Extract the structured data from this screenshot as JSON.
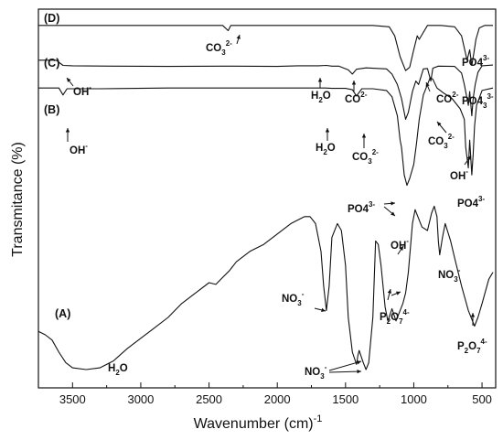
{
  "chart_data": {
    "type": "line",
    "xlabel": "Wavenumber (cm)",
    "xlabel_sup": "-1",
    "ylabel": "Transmitance (%)",
    "xlim": [
      3750,
      400
    ],
    "x_ticks": [
      3500,
      3000,
      2500,
      2000,
      1500,
      1000,
      500
    ],
    "y_ticks_labeled": false,
    "grid": false,
    "legend": "none",
    "series": [
      {
        "name": "(D)",
        "x": [
          3750,
          3000,
          2400,
          2360,
          2340,
          2000,
          1300,
          1180,
          1140,
          1100,
          1060,
          1030,
          1000,
          975,
          960,
          900,
          800,
          700,
          650,
          610,
          590,
          575,
          560,
          545,
          520,
          480,
          420
        ],
        "y": [
          99,
          99,
          99,
          97.5,
          99,
          99,
          99,
          98.6,
          96,
          90,
          86,
          87,
          92,
          96,
          95,
          99,
          99,
          98.6,
          96,
          89,
          92,
          87.5,
          91,
          95,
          98.3,
          99,
          99
        ]
      },
      {
        "name": "(C)",
        "x": [
          3750,
          3620,
          3570,
          3500,
          3200,
          2800,
          2400,
          2000,
          1850,
          1700,
          1640,
          1600,
          1550,
          1480,
          1450,
          1420,
          1350,
          1200,
          1160,
          1120,
          1090,
          1060,
          1040,
          1010,
          985,
          965,
          930,
          900,
          875,
          860,
          820,
          700,
          650,
          630,
          600,
          590,
          575,
          565,
          550,
          530,
          500,
          420
        ],
        "y": [
          89,
          89,
          87.5,
          87.4,
          87.3,
          87.2,
          87.3,
          87.2,
          87.4,
          87.4,
          87.5,
          87.3,
          87.3,
          86.2,
          85,
          86.4,
          86.8,
          86.5,
          85,
          82,
          78,
          72,
          74,
          80,
          83,
          82,
          86.5,
          86.6,
          83,
          86.7,
          87.3,
          87.2,
          85.3,
          82,
          76,
          80,
          73,
          78,
          82,
          85.5,
          87.4,
          87.6
        ]
      },
      {
        "name": "(B)",
        "x": [
          3750,
          3600,
          3570,
          3540,
          3300,
          2800,
          2400,
          2000,
          1750,
          1650,
          1600,
          1500,
          1450,
          1420,
          1380,
          1300,
          1200,
          1160,
          1120,
          1100,
          1090,
          1070,
          1050,
          1030,
          1000,
          980,
          960,
          930,
          900,
          880,
          860,
          830,
          780,
          720,
          660,
          630,
          620,
          600,
          590,
          575,
          565,
          555,
          540,
          500,
          420
        ],
        "y": [
          81,
          81,
          79,
          80.8,
          80.8,
          81,
          81,
          81,
          81,
          81,
          80.9,
          80.9,
          80.5,
          78.7,
          80.8,
          80.8,
          80.3,
          78.5,
          73,
          66,
          64,
          56,
          53,
          55,
          59,
          65,
          72,
          79,
          82,
          84,
          83.5,
          81,
          79.5,
          78,
          75,
          72,
          64,
          58,
          66,
          56,
          62,
          70,
          76,
          80.3,
          81
        ]
      },
      {
        "name": "(A)",
        "x": [
          3750,
          3700,
          3650,
          3600,
          3550,
          3500,
          3400,
          3300,
          3200,
          3100,
          3000,
          2900,
          2800,
          2700,
          2600,
          2500,
          2450,
          2400,
          2350,
          2300,
          2200,
          2100,
          2000,
          1900,
          1800,
          1760,
          1720,
          1680,
          1660,
          1640,
          1620,
          1600,
          1560,
          1530,
          1500,
          1480,
          1450,
          1420,
          1410,
          1400,
          1370,
          1350,
          1330,
          1300,
          1280,
          1260,
          1240,
          1210,
          1190,
          1160,
          1130,
          1100,
          1080,
          1060,
          1040,
          1010,
          990,
          970,
          940,
          900,
          870,
          850,
          830,
          820,
          810,
          790,
          770,
          730,
          700,
          650,
          600,
          570,
          555,
          530,
          500,
          450,
          420
        ],
        "y": [
          11,
          10,
          8.5,
          5,
          2,
          0.5,
          0,
          0.5,
          2.5,
          6,
          9,
          12,
          15,
          19,
          22,
          25,
          24.5,
          26.5,
          28.5,
          31,
          34,
          36,
          39,
          42,
          44,
          44,
          42,
          34,
          24,
          17,
          24,
          38,
          42,
          40,
          30,
          15,
          5,
          1.5,
          4,
          5.5,
          2,
          0,
          2,
          15,
          37,
          36,
          30,
          18,
          14,
          17.5,
          14,
          17,
          19,
          22,
          28,
          42,
          46,
          44,
          41,
          40,
          45,
          47,
          44,
          37,
          33,
          38,
          42,
          37,
          32,
          24,
          17,
          14,
          12.5,
          15,
          19,
          26,
          28
        ]
      }
    ]
  },
  "panel_labels": [
    "(D)",
    "(C)",
    "(B)",
    "(A)"
  ],
  "annotations": {
    "d_co3": {
      "main": "CO",
      "sub": "3",
      "sup": "2-"
    },
    "d_po4": {
      "main": "PO4",
      "sup": "3-"
    },
    "c_oh": {
      "main": "OH",
      "sup": "-"
    },
    "c_h2o": {
      "main": "H",
      "sub": "2",
      "tail": "O"
    },
    "c_co3": {
      "main": "CO",
      "sup": "2-"
    },
    "c_co3b": {
      "main": "CO",
      "sup": "2-"
    },
    "c_po4": {
      "main": "PO4",
      "sub": "3",
      "sup": "3-"
    },
    "b_oh": {
      "main": "OH",
      "sup": "-"
    },
    "b_h2o": {
      "main": "H",
      "sub": "2",
      "tail": "O"
    },
    "b_co3": {
      "main": "CO",
      "sub": "3",
      "sup": "2-"
    },
    "b_co3b": {
      "main": "CO",
      "sub": "3",
      "sup": "2-"
    },
    "b_oh2": {
      "main": "OH",
      "sup": "-"
    },
    "b_po4": {
      "main": "PO4",
      "sup": "3-"
    },
    "a_po4": {
      "main": "PO4",
      "sup": "3-"
    },
    "a_oh": {
      "main": "OH",
      "sup": "-"
    },
    "a_no3_1": {
      "main": "NO",
      "sub": "3",
      "sup": "-"
    },
    "a_no3_2": {
      "main": "NO",
      "sub": "3",
      "sup": "-"
    },
    "a_no3_3": {
      "main": "NO",
      "sub": "3",
      "sup": "-"
    },
    "a_p2o7_1": {
      "main": "P",
      "sub": "2",
      "tail": "O",
      "sub2": "7",
      "sup": "4-"
    },
    "a_p2o7_2": {
      "main": "P",
      "sub": "2",
      "tail": "O",
      "sub2": "7",
      "sup": "4-"
    },
    "a_h2o": {
      "main": "H",
      "sub": "2",
      "tail": "O"
    }
  }
}
